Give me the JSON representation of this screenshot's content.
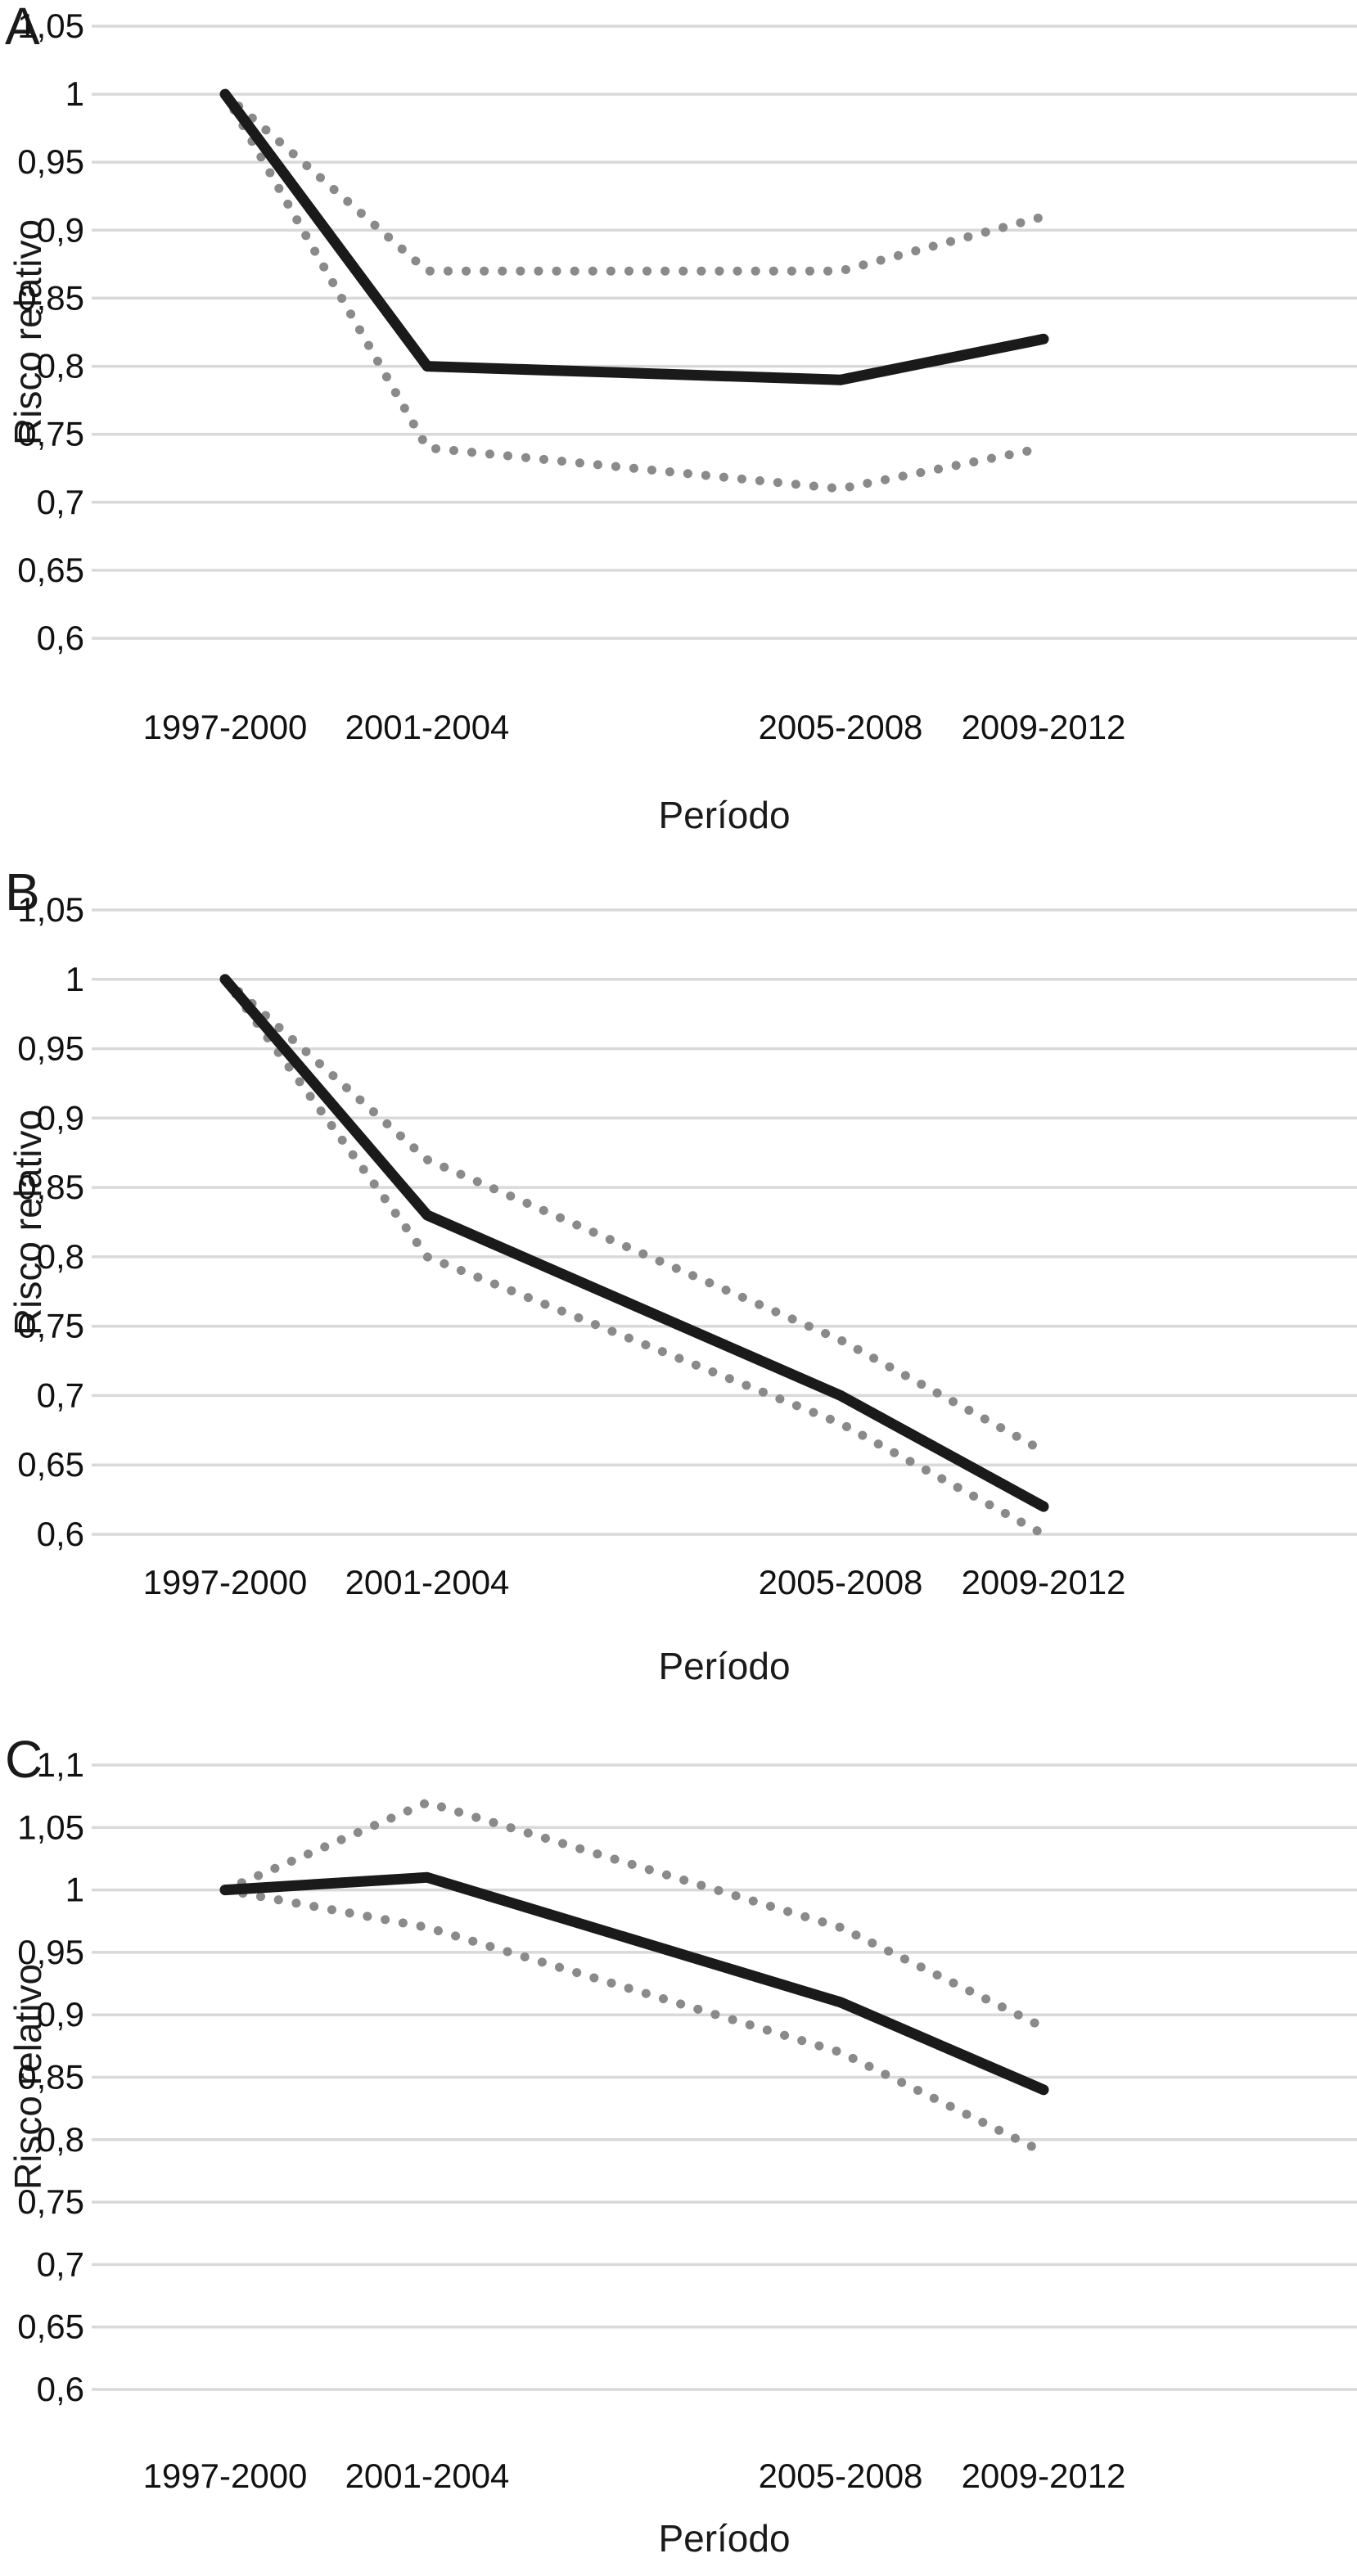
{
  "figure": {
    "background": "#ffffff"
  },
  "colors": {
    "solid_line": "#1a1a1a",
    "dotted_line": "#8a8a8a",
    "gridline": "#d9d9d9",
    "text": "#111111"
  },
  "chart_data": [
    {
      "type": "line",
      "panel_label": "A",
      "categories": [
        "1997-2000",
        "2001-2004",
        "2005-2008",
        "2009-2012"
      ],
      "xlabel": "Período",
      "ylabel": "Risco relativo",
      "ylim": [
        0.6,
        1.05
      ],
      "ytick_step": 0.05,
      "ytick_labels": [
        "1,05",
        "1",
        "0,95",
        "0,9",
        "0,85",
        "0,8",
        "0,75",
        "0,7",
        "0,65",
        "0,6"
      ],
      "grid": true,
      "legend_position": "none",
      "series": [
        {
          "role": "estimate",
          "style": "solid",
          "values": [
            1.0,
            0.8,
            0.79,
            0.82
          ]
        },
        {
          "role": "ci-upper",
          "style": "dotted",
          "values": [
            1.0,
            0.87,
            0.87,
            0.91
          ]
        },
        {
          "role": "ci-lower",
          "style": "dotted",
          "values": [
            1.0,
            0.74,
            0.71,
            0.74
          ]
        }
      ]
    },
    {
      "type": "line",
      "panel_label": "B",
      "categories": [
        "1997-2000",
        "2001-2004",
        "2005-2008",
        "2009-2012"
      ],
      "xlabel": "Período",
      "ylabel": "Risco relativo",
      "ylim": [
        0.6,
        1.05
      ],
      "ytick_step": 0.05,
      "ytick_labels": [
        "1,05",
        "1",
        "0,95",
        "0,9",
        "0,85",
        "0,8",
        "0,75",
        "0,7",
        "0,65",
        "0,6"
      ],
      "grid": true,
      "legend_position": "none",
      "series": [
        {
          "role": "estimate",
          "style": "solid",
          "values": [
            1.0,
            0.83,
            0.7,
            0.62
          ]
        },
        {
          "role": "ci-upper",
          "style": "dotted",
          "values": [
            1.0,
            0.87,
            0.74,
            0.66
          ]
        },
        {
          "role": "ci-lower",
          "style": "dotted",
          "values": [
            1.0,
            0.8,
            0.68,
            0.6
          ]
        }
      ]
    },
    {
      "type": "line",
      "panel_label": "C",
      "categories": [
        "1997-2000",
        "2001-2004",
        "2005-2008",
        "2009-2012"
      ],
      "xlabel": "Período",
      "ylabel": "Risco relativo",
      "ylim": [
        0.6,
        1.1
      ],
      "ytick_step": 0.05,
      "ytick_labels": [
        "1,1",
        "1,05",
        "1",
        "0,95",
        "0,9",
        "0,85",
        "0,8",
        "0,75",
        "0,7",
        "0,65",
        "0,6"
      ],
      "grid": true,
      "legend_position": "none",
      "series": [
        {
          "role": "estimate",
          "style": "solid",
          "values": [
            1.0,
            1.01,
            0.91,
            0.84
          ]
        },
        {
          "role": "ci-upper",
          "style": "dotted",
          "values": [
            1.0,
            1.07,
            0.97,
            0.89
          ]
        },
        {
          "role": "ci-lower",
          "style": "dotted",
          "values": [
            1.0,
            0.97,
            0.87,
            0.79
          ]
        }
      ]
    }
  ]
}
